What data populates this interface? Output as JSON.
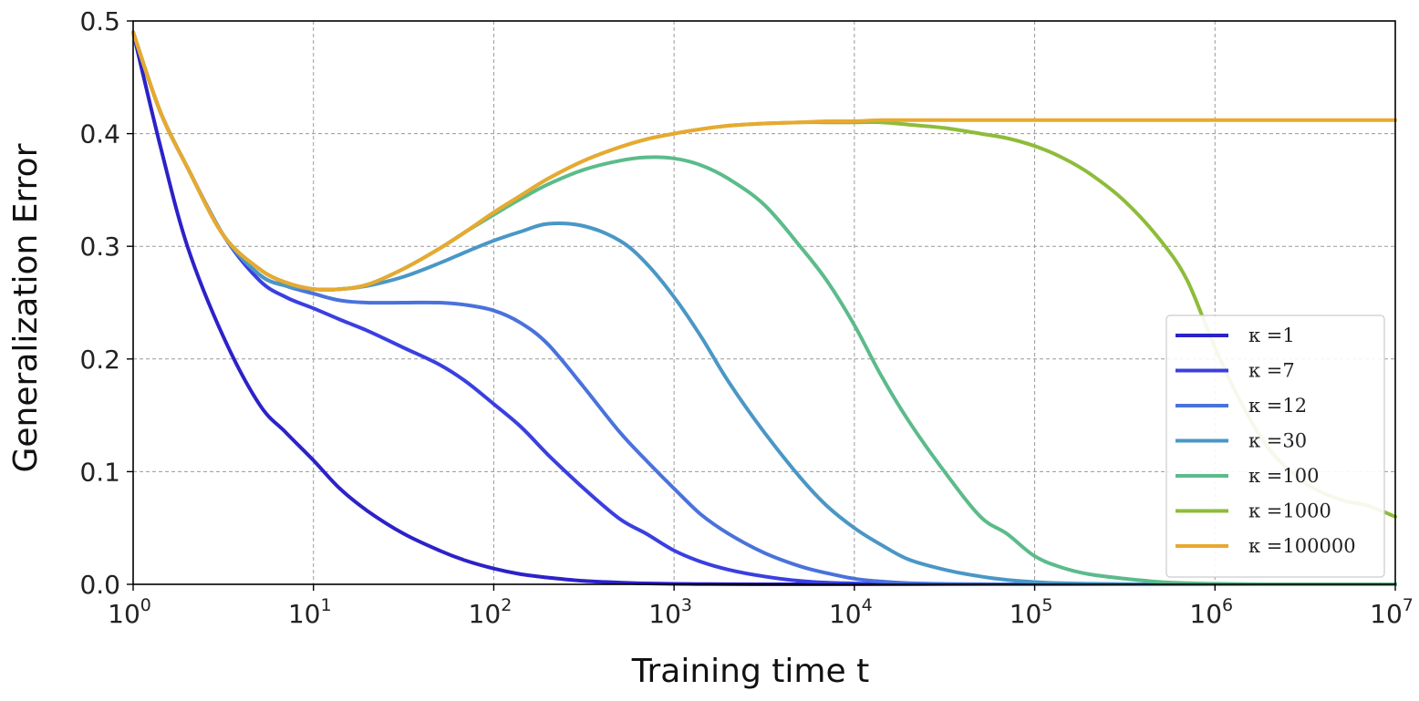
{
  "chart_data": {
    "type": "line",
    "xlabel": "Training time t",
    "ylabel": "Generalization Error",
    "xscale": "log",
    "xlim": [
      1,
      10000000
    ],
    "ylim": [
      0,
      0.5
    ],
    "grid": true,
    "legend_position": "lower-right",
    "x_ticks": [
      {
        "base": "10",
        "exp": "0"
      },
      {
        "base": "10",
        "exp": "1"
      },
      {
        "base": "10",
        "exp": "2"
      },
      {
        "base": "10",
        "exp": "3"
      },
      {
        "base": "10",
        "exp": "4"
      },
      {
        "base": "10",
        "exp": "5"
      },
      {
        "base": "10",
        "exp": "6"
      },
      {
        "base": "10",
        "exp": "7"
      }
    ],
    "y_ticks": [
      "0.0",
      "0.1",
      "0.2",
      "0.3",
      "0.4",
      "0.5"
    ],
    "x": [
      1,
      1.41,
      2,
      3.16,
      5,
      7,
      10,
      14,
      20,
      31.6,
      50,
      70,
      100,
      141,
      200,
      316,
      500,
      700,
      1000,
      1410,
      2000,
      3160,
      5000,
      7000,
      10000,
      14100,
      20000,
      31600,
      50000,
      70000,
      100000,
      141000,
      200000,
      316000,
      500000,
      700000,
      1000000,
      1410000,
      2000000,
      3160000,
      5000000,
      7000000,
      10000000
    ],
    "series": [
      {
        "name": "κ =1",
        "color": "#2c22c8",
        "values": [
          0.49,
          0.39,
          0.3,
          0.22,
          0.16,
          0.135,
          0.11,
          0.085,
          0.065,
          0.045,
          0.03,
          0.021,
          0.014,
          0.009,
          0.006,
          0.003,
          0.0015,
          0.0008,
          0.0004,
          0.0002,
          0.0001,
          0.0,
          0.0,
          0.0,
          0.0,
          0.0,
          0.0,
          0.0,
          0.0,
          0.0,
          0.0,
          0.0,
          0.0,
          0.0,
          0.0,
          0.0,
          0.0,
          0.0,
          0.0,
          0.0,
          0.0,
          0.0,
          0.0
        ]
      },
      {
        "name": "κ =7",
        "color": "#3a3fe0",
        "values": [
          0.49,
          0.42,
          0.37,
          0.31,
          0.27,
          0.255,
          0.245,
          0.235,
          0.225,
          0.21,
          0.195,
          0.18,
          0.16,
          0.14,
          0.115,
          0.085,
          0.058,
          0.045,
          0.03,
          0.02,
          0.013,
          0.007,
          0.003,
          0.0015,
          0.0008,
          0.0003,
          0.0001,
          0.0,
          0.0,
          0.0,
          0.0,
          0.0,
          0.0,
          0.0,
          0.0,
          0.0,
          0.0,
          0.0,
          0.0,
          0.0,
          0.0,
          0.0,
          0.0
        ]
      },
      {
        "name": "κ =12",
        "color": "#4a72dc",
        "values": [
          0.49,
          0.42,
          0.37,
          0.31,
          0.275,
          0.265,
          0.258,
          0.252,
          0.25,
          0.25,
          0.25,
          0.248,
          0.243,
          0.232,
          0.213,
          0.175,
          0.135,
          0.11,
          0.085,
          0.062,
          0.045,
          0.028,
          0.016,
          0.01,
          0.005,
          0.0025,
          0.001,
          0.0003,
          0.0001,
          0.0,
          0.0,
          0.0,
          0.0,
          0.0,
          0.0,
          0.0,
          0.0,
          0.0,
          0.0,
          0.0,
          0.0,
          0.0,
          0.0
        ]
      },
      {
        "name": "κ =30",
        "color": "#4a97c6",
        "values": [
          0.49,
          0.42,
          0.37,
          0.31,
          0.275,
          0.265,
          0.262,
          0.262,
          0.265,
          0.273,
          0.285,
          0.295,
          0.305,
          0.313,
          0.32,
          0.318,
          0.305,
          0.285,
          0.255,
          0.22,
          0.18,
          0.135,
          0.095,
          0.07,
          0.05,
          0.035,
          0.022,
          0.013,
          0.007,
          0.004,
          0.002,
          0.001,
          0.0005,
          0.0002,
          0.0,
          0.0,
          0.0,
          0.0,
          0.0,
          0.0,
          0.0,
          0.0,
          0.0
        ]
      },
      {
        "name": "κ =100",
        "color": "#5cbb8a",
        "values": [
          0.49,
          0.42,
          0.37,
          0.31,
          0.28,
          0.268,
          0.262,
          0.262,
          0.266,
          0.28,
          0.298,
          0.313,
          0.328,
          0.342,
          0.355,
          0.368,
          0.376,
          0.379,
          0.378,
          0.372,
          0.36,
          0.337,
          0.3,
          0.27,
          0.23,
          0.185,
          0.145,
          0.1,
          0.06,
          0.045,
          0.025,
          0.015,
          0.009,
          0.005,
          0.002,
          0.001,
          0.0005,
          0.0002,
          0.0,
          0.0,
          0.0,
          0.0,
          0.0
        ]
      },
      {
        "name": "κ =1000",
        "color": "#8ebc3a",
        "values": [
          0.49,
          0.42,
          0.37,
          0.31,
          0.28,
          0.268,
          0.262,
          0.262,
          0.266,
          0.28,
          0.298,
          0.313,
          0.33,
          0.345,
          0.36,
          0.376,
          0.388,
          0.395,
          0.4,
          0.404,
          0.407,
          0.409,
          0.41,
          0.41,
          0.41,
          0.41,
          0.408,
          0.405,
          0.4,
          0.396,
          0.389,
          0.379,
          0.365,
          0.34,
          0.305,
          0.27,
          0.21,
          0.16,
          0.12,
          0.09,
          0.075,
          0.07,
          0.06
        ]
      },
      {
        "name": "κ =100000",
        "color": "#e8a930",
        "values": [
          0.49,
          0.42,
          0.37,
          0.31,
          0.28,
          0.268,
          0.262,
          0.262,
          0.266,
          0.28,
          0.298,
          0.313,
          0.33,
          0.345,
          0.36,
          0.376,
          0.388,
          0.395,
          0.4,
          0.404,
          0.407,
          0.409,
          0.41,
          0.411,
          0.411,
          0.412,
          0.412,
          0.412,
          0.412,
          0.412,
          0.412,
          0.412,
          0.412,
          0.412,
          0.412,
          0.412,
          0.412,
          0.412,
          0.412,
          0.412,
          0.412,
          0.412,
          0.412
        ]
      }
    ]
  }
}
